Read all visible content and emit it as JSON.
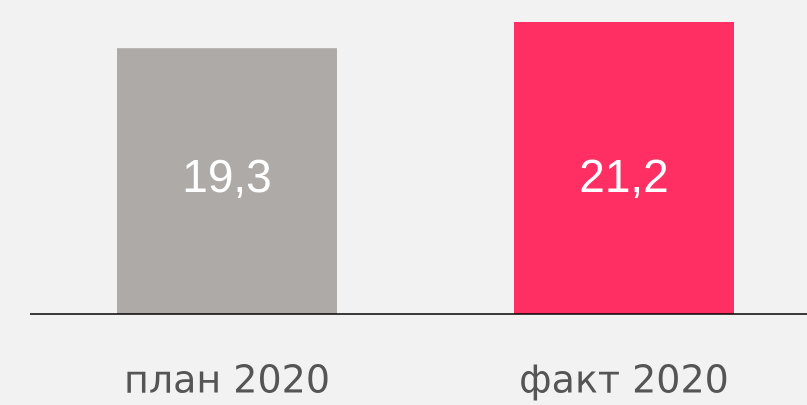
{
  "chart_data": {
    "type": "bar",
    "categories": [
      "план 2020",
      "факт 2020"
    ],
    "values": [
      19.3,
      21.2
    ],
    "value_labels": [
      "19,3",
      "21,2"
    ],
    "colors": [
      "#aeaaa8",
      "#ff2e63"
    ]
  }
}
